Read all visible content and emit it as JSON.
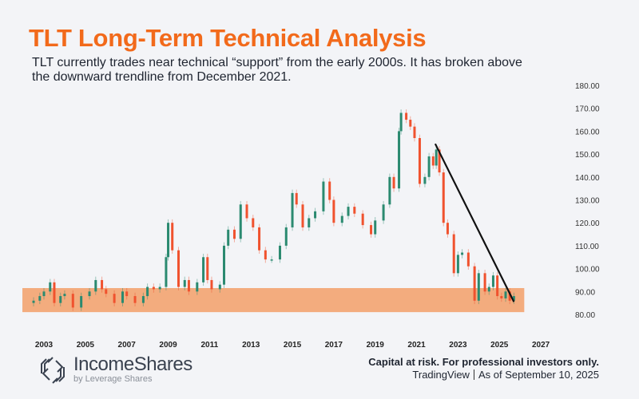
{
  "title": "TLT Long-Term Technical Analysis",
  "subtitle": "TLT currently trades near technical “support” from the early 2000s. It has broken above the downward trendline from December 2021.",
  "footer": {
    "brand": "IncomeShares",
    "brand_sub": "by Leverage Shares",
    "disclaimer": "Capital at risk. For professional investors only.",
    "source": "TradingView",
    "as_of": "As of September 10, 2025"
  },
  "colors": {
    "title": "#f26a1b",
    "up": "#2b8a70",
    "down": "#f0522e",
    "support_band": "#f3ac7e",
    "trendline": "#111111"
  },
  "chart_data": {
    "type": "candlestick",
    "ylim": [
      80,
      180
    ],
    "xlim": [
      2002.5,
      2027.3
    ],
    "yticks": [
      "80.00",
      "90.00",
      "100.00",
      "110.00",
      "120.00",
      "130.00",
      "140.00",
      "150.00",
      "160.00",
      "170.00",
      "180.00"
    ],
    "xticks": [
      "2003",
      "2005",
      "2007",
      "2009",
      "2011",
      "2013",
      "2015",
      "2017",
      "2019",
      "2021",
      "2023",
      "2025",
      "2027"
    ],
    "grid": false,
    "support_band": {
      "from": 81,
      "to": 91.5,
      "x_start": 2002.5,
      "x_end": 2026.2
    },
    "trendline": {
      "start": {
        "x": 2021.9,
        "y": 154.5
      },
      "end": {
        "x": 2025.7,
        "y": 85.5
      }
    },
    "closes": [
      [
        2002.5,
        86
      ],
      [
        2002.8,
        88
      ],
      [
        2003.0,
        90
      ],
      [
        2003.3,
        94
      ],
      [
        2003.5,
        85
      ],
      [
        2003.8,
        88
      ],
      [
        2004.0,
        89
      ],
      [
        2004.4,
        83
      ],
      [
        2004.8,
        88
      ],
      [
        2005.2,
        90
      ],
      [
        2005.5,
        95
      ],
      [
        2005.8,
        91
      ],
      [
        2006.0,
        89
      ],
      [
        2006.4,
        85
      ],
      [
        2006.8,
        90
      ],
      [
        2007.0,
        88
      ],
      [
        2007.4,
        85
      ],
      [
        2007.8,
        88
      ],
      [
        2008.0,
        92
      ],
      [
        2008.3,
        91
      ],
      [
        2008.6,
        92
      ],
      [
        2008.9,
        105
      ],
      [
        2009.0,
        120
      ],
      [
        2009.2,
        108
      ],
      [
        2009.5,
        92
      ],
      [
        2009.8,
        95
      ],
      [
        2010.0,
        90
      ],
      [
        2010.4,
        94
      ],
      [
        2010.7,
        105
      ],
      [
        2010.9,
        95
      ],
      [
        2011.1,
        91
      ],
      [
        2011.5,
        93
      ],
      [
        2011.7,
        110
      ],
      [
        2011.9,
        117
      ],
      [
        2012.2,
        113
      ],
      [
        2012.5,
        128
      ],
      [
        2012.8,
        122
      ],
      [
        2013.1,
        118
      ],
      [
        2013.4,
        108
      ],
      [
        2013.7,
        104
      ],
      [
        2014.0,
        104
      ],
      [
        2014.4,
        110
      ],
      [
        2014.7,
        118
      ],
      [
        2015.0,
        133
      ],
      [
        2015.2,
        128
      ],
      [
        2015.5,
        118
      ],
      [
        2015.8,
        122
      ],
      [
        2016.1,
        125
      ],
      [
        2016.5,
        138
      ],
      [
        2016.8,
        130
      ],
      [
        2017.0,
        120
      ],
      [
        2017.4,
        123
      ],
      [
        2017.7,
        127
      ],
      [
        2018.0,
        124
      ],
      [
        2018.4,
        119
      ],
      [
        2018.8,
        115
      ],
      [
        2019.0,
        121
      ],
      [
        2019.4,
        128
      ],
      [
        2019.7,
        140
      ],
      [
        2019.9,
        135
      ],
      [
        2020.15,
        160
      ],
      [
        2020.25,
        168
      ],
      [
        2020.5,
        165
      ],
      [
        2020.7,
        162
      ],
      [
        2020.9,
        157
      ],
      [
        2021.15,
        137
      ],
      [
        2021.4,
        140
      ],
      [
        2021.6,
        149
      ],
      [
        2021.8,
        145
      ],
      [
        2021.95,
        152
      ],
      [
        2022.1,
        142
      ],
      [
        2022.3,
        120
      ],
      [
        2022.5,
        115
      ],
      [
        2022.8,
        98
      ],
      [
        2023.0,
        106
      ],
      [
        2023.2,
        107
      ],
      [
        2023.5,
        101
      ],
      [
        2023.8,
        86
      ],
      [
        2024.0,
        98
      ],
      [
        2024.3,
        90
      ],
      [
        2024.5,
        92
      ],
      [
        2024.7,
        97
      ],
      [
        2024.9,
        88
      ],
      [
        2025.1,
        87
      ],
      [
        2025.3,
        90
      ],
      [
        2025.5,
        86
      ],
      [
        2025.7,
        88
      ]
    ]
  }
}
